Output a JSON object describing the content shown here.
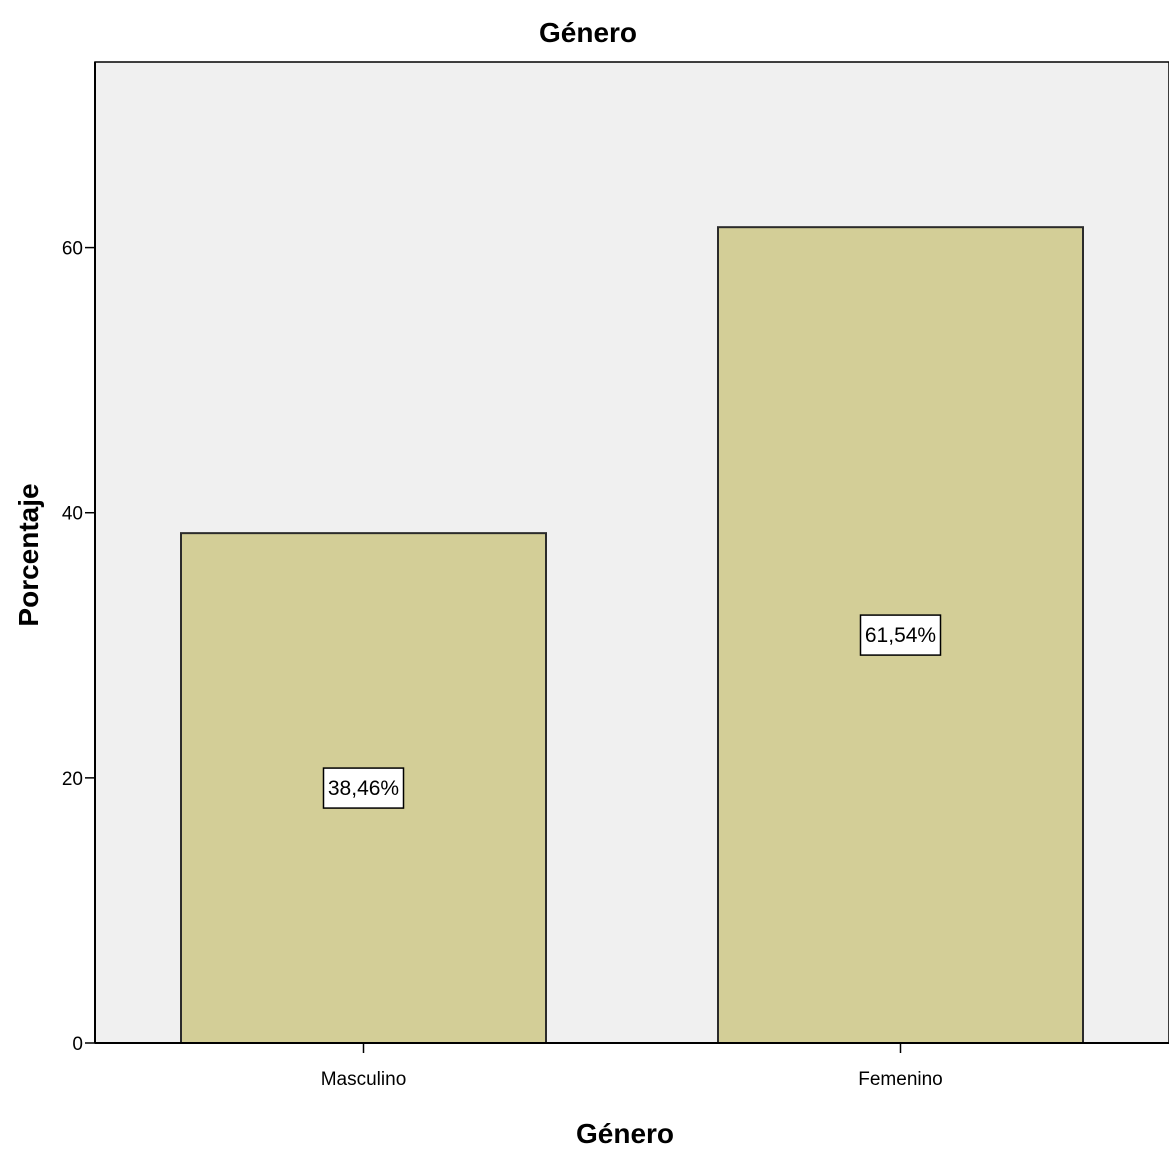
{
  "chart_data": {
    "type": "bar",
    "title": "Género",
    "xlabel": "Género",
    "ylabel": "Porcentaje",
    "categories": [
      "Masculino",
      "Femenino"
    ],
    "values": [
      38.46,
      61.54
    ],
    "data_labels": [
      "38,46%",
      "61,54%"
    ],
    "ylim": [
      0,
      74
    ],
    "yticks": [
      0,
      20,
      40,
      60
    ],
    "grid": false,
    "legend": "none",
    "colors": {
      "plot_background": "#f0f0f0",
      "bar_fill": "#d3ce97",
      "bar_stroke": "#2b2b2b",
      "axis": "#000000"
    }
  }
}
